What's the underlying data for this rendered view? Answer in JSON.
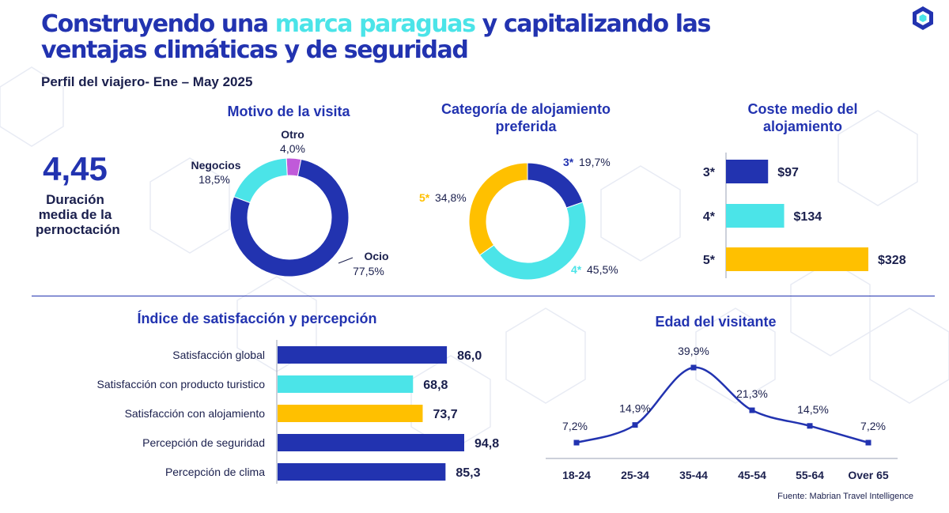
{
  "header": {
    "title_part1": "Construyendo una ",
    "title_highlight": "marca paraguas",
    "title_part2": " y capitalizando las",
    "title_line2": "ventajas climáticas y de seguridad",
    "subtitle": "Perfil del viajero- Ene – May 2025"
  },
  "kpi": {
    "value": "4,45",
    "label_line1": "Duración",
    "label_line2": "media de la",
    "label_line3": "pernoctación"
  },
  "footer": {
    "source": "Fuente: Mabrian Travel Intelligence"
  },
  "colors": {
    "navy": "#2233b0",
    "cyan": "#4be4e8",
    "gold": "#ffc000",
    "purple": "#c05ad9",
    "dark": "#1a1f4d"
  },
  "chart_data": [
    {
      "type": "pie",
      "title": "Motivo de la visita",
      "slices": [
        {
          "label": "Ocio",
          "value": 77.5,
          "value_label": "77,5%",
          "color": "#2233b0"
        },
        {
          "label": "Negocios",
          "value": 18.5,
          "value_label": "18,5%",
          "color": "#4be4e8"
        },
        {
          "label": "Otro",
          "value": 4.0,
          "value_label": "4,0%",
          "color": "#c05ad9"
        }
      ]
    },
    {
      "type": "pie",
      "title_line1": "Categoría de alojamiento",
      "title_line2": "preferida",
      "slices": [
        {
          "label": "3*",
          "value": 19.7,
          "value_label": "19,7%",
          "color": "#2233b0"
        },
        {
          "label": "4*",
          "value": 45.5,
          "value_label": "45,5%",
          "color": "#4be4e8"
        },
        {
          "label": "5*",
          "value": 34.8,
          "value_label": "34,8%",
          "color": "#ffc000"
        }
      ]
    },
    {
      "type": "bar",
      "orientation": "horizontal",
      "title_line1": "Coste medio del",
      "title_line2": "alojamiento",
      "categories": [
        "3*",
        "4*",
        "5*"
      ],
      "values": [
        97,
        134,
        328
      ],
      "value_labels": [
        "$97",
        "$134",
        "$328"
      ],
      "colors": [
        "#2233b0",
        "#4be4e8",
        "#ffc000"
      ]
    },
    {
      "type": "bar",
      "orientation": "horizontal",
      "title": "Índice de satisfacción y percepción",
      "categories": [
        "Satisfacción global",
        "Satisfacción con producto turistico",
        "Satisfacción con alojamiento",
        "Percepción de seguridad",
        "Percepción de clima"
      ],
      "values": [
        86.0,
        68.8,
        73.7,
        94.8,
        85.3
      ],
      "value_labels": [
        "86,0",
        "68,8",
        "73,7",
        "94,8",
        "85,3"
      ],
      "colors": [
        "#2233b0",
        "#4be4e8",
        "#ffc000",
        "#2233b0",
        "#2233b0"
      ]
    },
    {
      "type": "line",
      "title": "Edad del visitante",
      "categories": [
        "18-24",
        "25-34",
        "35-44",
        "45-54",
        "55-64",
        "Over 65"
      ],
      "values": [
        7.2,
        14.9,
        39.9,
        21.3,
        14.5,
        7.2
      ],
      "value_labels": [
        "7,2%",
        "14,9%",
        "39,9%",
        "21,3%",
        "14,5%",
        "7,2%"
      ],
      "color": "#2233b0",
      "grid": false
    }
  ]
}
